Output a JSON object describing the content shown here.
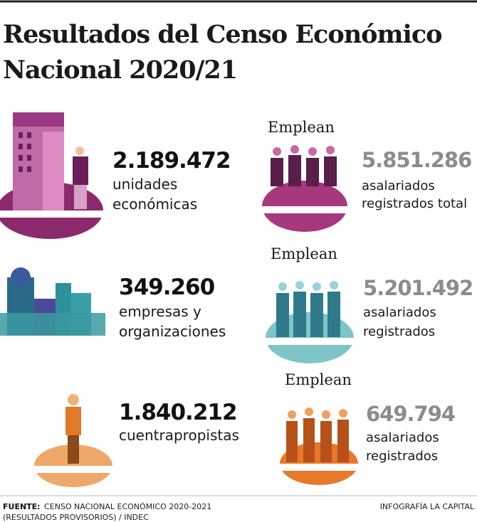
{
  "header": {
    "title_lines": [
      "Resultados del Censo Económico",
      "Nacional 2020/21"
    ]
  },
  "rows": [
    {
      "left": {
        "number": "2.189.472",
        "label_lines": [
          "unidades",
          "económicas"
        ]
      },
      "right": {
        "heading": "Emplean",
        "number": "5.851.286",
        "label_lines": [
          "asalariados",
          "registrados total"
        ]
      }
    },
    {
      "left": {
        "number": "349.260",
        "label_lines": [
          "empresas y",
          "organizaciones"
        ]
      },
      "right": {
        "heading": "Emplean",
        "number": "5.201.492",
        "label_lines": [
          "asalariados",
          "registrados"
        ]
      }
    },
    {
      "left": {
        "number": "1.840.212",
        "label_lines": [
          "cuentrapropistas"
        ]
      },
      "right": {
        "heading": "Emplean",
        "number": "649.794",
        "label_lines": [
          "asalariados",
          "registrados"
        ]
      }
    }
  ],
  "footer": {
    "source_label": "FUENTE:",
    "source_lines": [
      "CENSO NACIONAL ECONÓMICO 2020-2021",
      "(RESULTADOS PROVISORIOS) / INDEC"
    ],
    "credit": "INFOGRAFÍA LA CAPITAL"
  }
}
